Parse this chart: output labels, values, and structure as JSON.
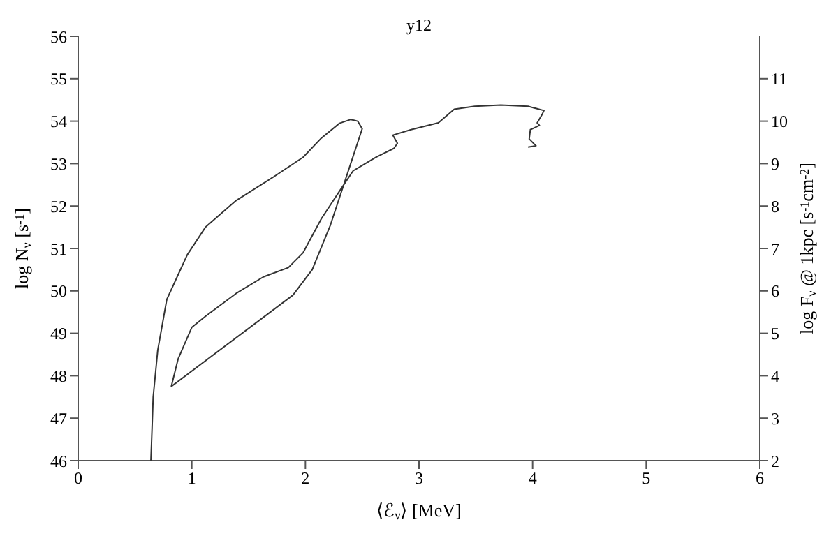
{
  "chart_data": {
    "type": "line",
    "title": "y12",
    "xlabel": "⟨ℰ$_{ν}$⟩ [MeV]",
    "ylabel": "log N$_{ν}$ [s$^{-1}$]",
    "y2label": "log F$_{ν}$ @ 1kpc [s$^{-1}$cm$^{-2}$]",
    "xlim": [
      0,
      6
    ],
    "xticks": [
      0,
      1,
      2,
      3,
      4,
      5,
      6
    ],
    "ylim": [
      46,
      56
    ],
    "yticks": [
      46,
      47,
      48,
      49,
      50,
      51,
      52,
      53,
      54,
      55,
      56
    ],
    "y2lim": [
      2,
      12
    ],
    "y2ticks": [
      2,
      3,
      4,
      5,
      6,
      7,
      8,
      9,
      10,
      11
    ],
    "marker": "none",
    "line_style": "solid",
    "series": [
      {
        "color": "#333333",
        "x": [
          0.64,
          0.66,
          0.7,
          0.78,
          0.96,
          1.12,
          1.39,
          1.71,
          1.98,
          2.14,
          2.3,
          2.4,
          2.46,
          2.5,
          2.22,
          2.06,
          1.89,
          0.82,
          0.88,
          1.0,
          1.12,
          1.39,
          1.63,
          1.85,
          1.98,
          2.14,
          2.3,
          2.42,
          2.62,
          2.78,
          2.81,
          2.77,
          2.93,
          3.17,
          3.31,
          3.49,
          3.72,
          3.96,
          4.1,
          4.08,
          4.04,
          4.06,
          3.98,
          3.97,
          4.03,
          3.96
        ],
        "values": [
          46.0,
          47.5,
          48.6,
          49.8,
          50.85,
          51.5,
          52.13,
          52.67,
          53.15,
          53.6,
          53.95,
          54.04,
          54.0,
          53.82,
          51.55,
          50.5,
          49.9,
          47.75,
          48.4,
          49.14,
          49.4,
          49.94,
          50.33,
          50.55,
          50.9,
          51.7,
          52.35,
          52.83,
          53.15,
          53.36,
          53.48,
          53.67,
          53.8,
          53.96,
          54.28,
          54.35,
          54.38,
          54.35,
          54.25,
          54.14,
          53.96,
          53.9,
          53.8,
          53.58,
          53.42,
          53.39
        ]
      }
    ]
  }
}
